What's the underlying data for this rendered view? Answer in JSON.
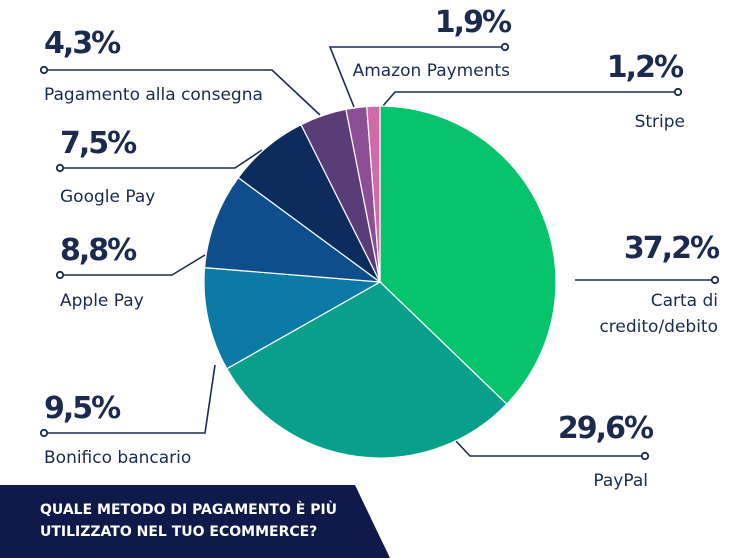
{
  "chart_data": {
    "type": "pie",
    "title": "QUALE METODO DI PAGAMENTO È PIÙ UTILIZZATO NEL TUO ECOMMERCE?",
    "slices": [
      {
        "label": "Carta di credito/debito",
        "lines": [
          "Carta di",
          "credito/debito"
        ],
        "pct_text": "37,2%",
        "value": 37.2,
        "color": "#05c46b"
      },
      {
        "label": "PayPal",
        "lines": [
          "PayPal"
        ],
        "pct_text": "29,6%",
        "value": 29.6,
        "color": "#08a08a"
      },
      {
        "label": "Bonifico bancario",
        "lines": [
          "Bonifico bancario"
        ],
        "pct_text": "9,5%",
        "value": 9.5,
        "color": "#0b7aa6"
      },
      {
        "label": "Apple Pay",
        "lines": [
          "Apple Pay"
        ],
        "pct_text": "8,8%",
        "value": 8.8,
        "color": "#0f4e8c"
      },
      {
        "label": "Google Pay",
        "lines": [
          "Google Pay"
        ],
        "pct_text": "7,5%",
        "value": 7.5,
        "color": "#0d2c5e"
      },
      {
        "label": "Pagamento alla consegna",
        "lines": [
          "Pagamento alla consegna"
        ],
        "pct_text": "4,3%",
        "value": 4.3,
        "color": "#5a3d78"
      },
      {
        "label": "Amazon Payments",
        "lines": [
          "Amazon Payments"
        ],
        "pct_text": "1,9%",
        "value": 1.9,
        "color": "#8c4f95"
      },
      {
        "label": "Stripe",
        "lines": [
          "Stripe"
        ],
        "pct_text": "1,2%",
        "value": 1.2,
        "color": "#d06aa8"
      }
    ]
  }
}
